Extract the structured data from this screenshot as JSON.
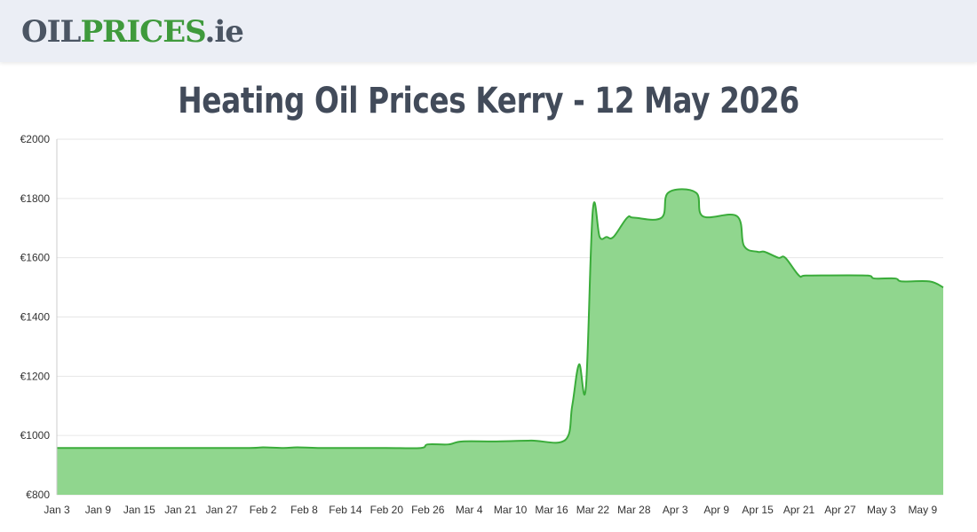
{
  "header": {
    "logo_part1": "OIL",
    "logo_part2": "PRICES",
    "logo_part3": ".ie"
  },
  "page": {
    "title": "Heating Oil Prices Kerry - 12 May 2026"
  },
  "colors": {
    "line": "#3aac3a",
    "fill": "#90d68e",
    "grid": "#e6e6e6",
    "logo_green": "#3f9a3c",
    "logo_grey": "#4b5563"
  },
  "chart_data": {
    "type": "area",
    "title": "Heating Oil Prices Kerry - 12 May 2026",
    "xlabel": "",
    "ylabel": "",
    "ylim": [
      800,
      2000
    ],
    "yticks": [
      800,
      1000,
      1200,
      1400,
      1600,
      1800,
      2000
    ],
    "ytick_labels": [
      "€800",
      "€1000",
      "€1200",
      "€1400",
      "€1600",
      "€1800",
      "€2000"
    ],
    "xlim": [
      "Jan 3",
      "May 12"
    ],
    "xtick_labels": [
      "Jan 3",
      "Jan 9",
      "Jan 15",
      "Jan 21",
      "Jan 27",
      "Feb 2",
      "Feb 8",
      "Feb 14",
      "Feb 20",
      "Feb 26",
      "Mar 4",
      "Mar 10",
      "Mar 16",
      "Mar 22",
      "Mar 28",
      "Apr 3",
      "Apr 9",
      "Apr 15",
      "Apr 21",
      "Apr 27",
      "May 3",
      "May 9"
    ],
    "grid": true,
    "legend": "none",
    "series": [
      {
        "x": [
          "Jan 3",
          "Jan 10",
          "Jan 20",
          "Jan 31",
          "Feb 2",
          "Feb 5",
          "Feb 7",
          "Feb 10",
          "Feb 15",
          "Feb 20",
          "Feb 25",
          "Feb 26",
          "Mar 1",
          "Mar 3",
          "Mar 8",
          "Mar 13",
          "Mar 18",
          "Mar 19",
          "Mar 20",
          "Mar 21",
          "Mar 22",
          "Mar 23",
          "Mar 24",
          "Mar 25",
          "Mar 27",
          "Mar 28",
          "Apr 1",
          "Apr 2",
          "Apr 6",
          "Apr 7",
          "Apr 12",
          "Apr 13",
          "Apr 15",
          "Apr 16",
          "Apr 18",
          "Apr 19",
          "Apr 21",
          "Apr 22",
          "May 1",
          "May 2",
          "May 5",
          "May 6",
          "May 10",
          "May 12"
        ],
        "y": [
          958,
          958,
          958,
          958,
          960,
          958,
          960,
          958,
          958,
          958,
          958,
          970,
          970,
          980,
          980,
          983,
          985,
          1100,
          1240,
          1165,
          1760,
          1670,
          1670,
          1670,
          1735,
          1735,
          1735,
          1820,
          1820,
          1740,
          1740,
          1640,
          1620,
          1620,
          1600,
          1600,
          1540,
          1540,
          1540,
          1530,
          1530,
          1520,
          1520,
          1500
        ]
      }
    ]
  }
}
